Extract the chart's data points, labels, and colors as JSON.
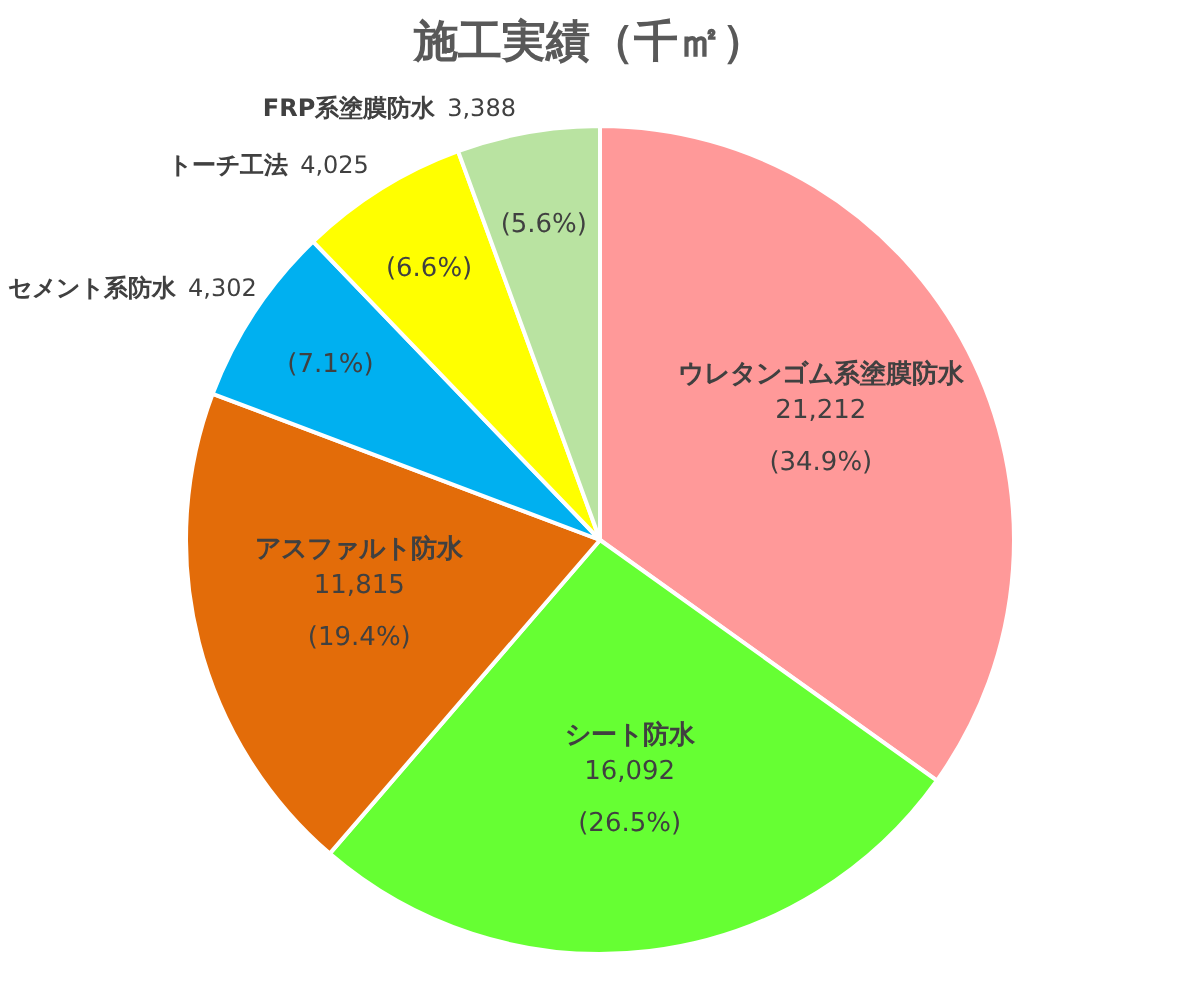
{
  "chart_data": {
    "type": "pie",
    "title": "施工実績（千㎡）",
    "categories": [
      "ウレタンゴム系塗膜防水",
      "シート防水",
      "アスファルト防水",
      "セメント系防水",
      "トーチ工法",
      "FRP系塗膜防水"
    ],
    "values": [
      21212,
      16092,
      11815,
      4302,
      4025,
      3388
    ],
    "colors": [
      "#ff9999",
      "#66ff33",
      "#e36c09",
      "#00b0f0",
      "#ffff00",
      "#b9e3a1"
    ],
    "value_labels": [
      "21,212",
      "16,092",
      "11,815",
      "4,302",
      "4,025",
      "3,388"
    ],
    "annotations": [
      {
        "text": "(34.9%)",
        "x": "ウレタンゴム系塗膜防水"
      },
      {
        "text": "(26.5%)",
        "x": "シート防水"
      },
      {
        "text": "(19.4%)",
        "x": "アスファルト防水"
      },
      {
        "text": "(7.1%)",
        "x": "セメント系防水"
      },
      {
        "text": "(6.6%)",
        "x": "トーチ工法"
      },
      {
        "text": "(5.6%)",
        "x": "FRP系塗膜防水"
      }
    ]
  }
}
